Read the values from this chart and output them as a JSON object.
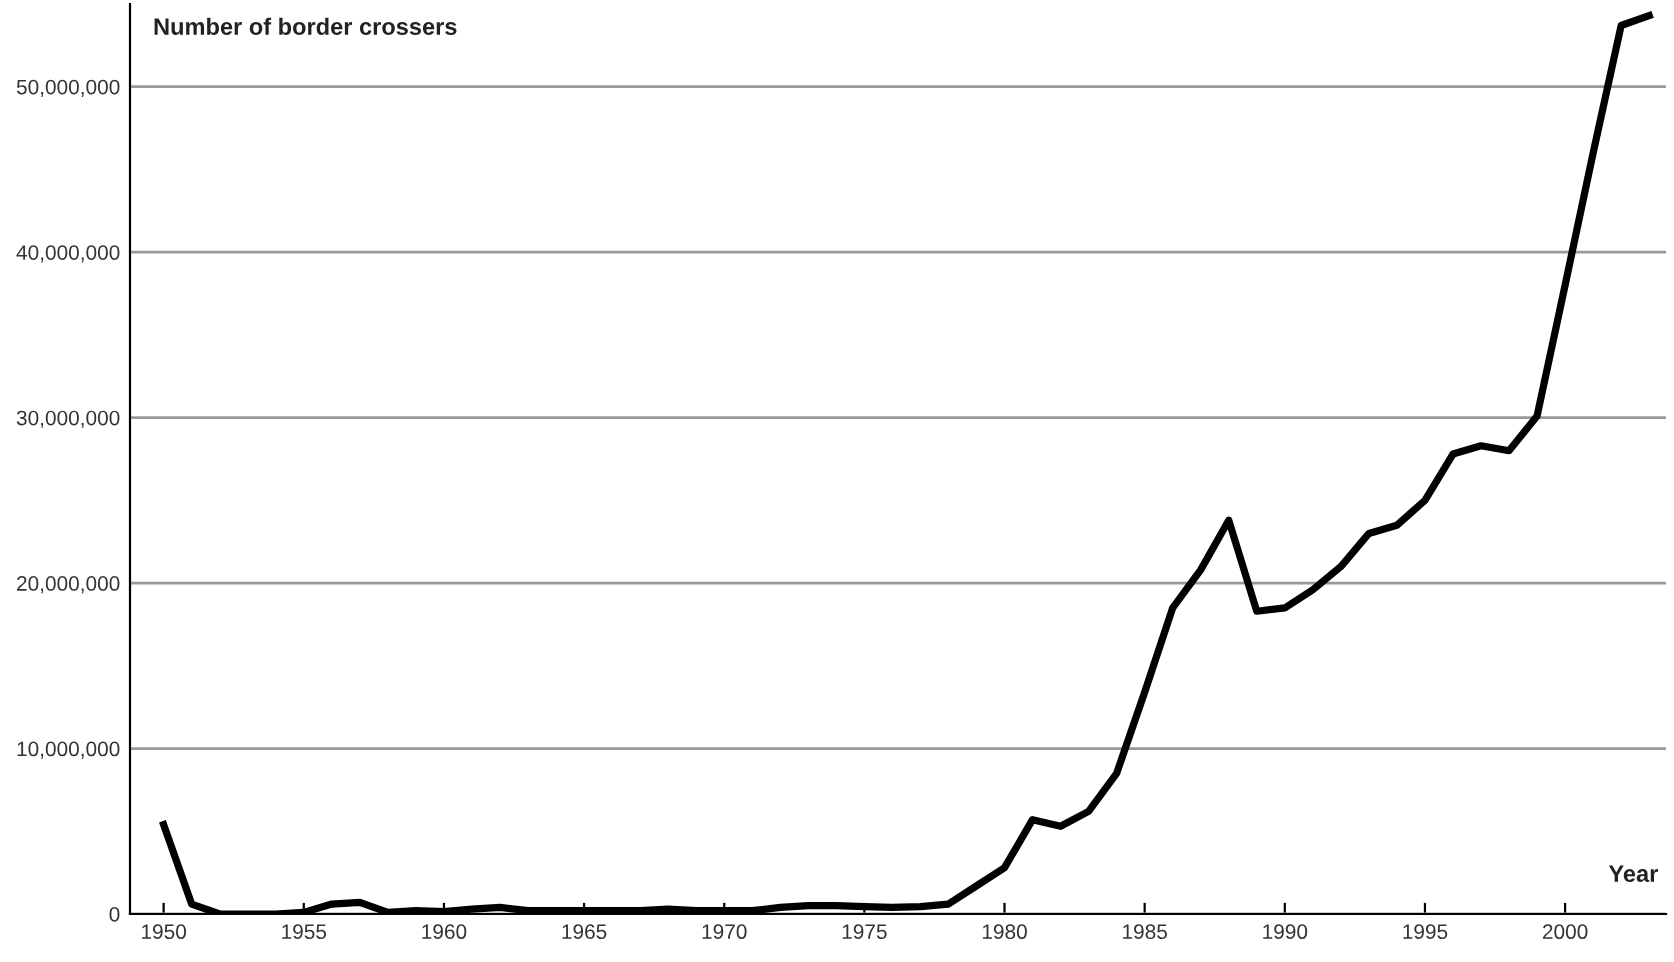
{
  "chart_data": {
    "type": "line",
    "ylabel": "Number of border crossers",
    "xlabel": "Year",
    "x": [
      1950,
      1951,
      1952,
      1953,
      1954,
      1955,
      1956,
      1957,
      1958,
      1959,
      1960,
      1961,
      1962,
      1963,
      1964,
      1965,
      1966,
      1967,
      1968,
      1969,
      1970,
      1971,
      1972,
      1973,
      1974,
      1975,
      1976,
      1977,
      1978,
      1979,
      1980,
      1981,
      1982,
      1983,
      1984,
      1985,
      1986,
      1987,
      1988,
      1989,
      1990,
      1991,
      1992,
      1993,
      1994,
      1995,
      1996,
      1997,
      1998,
      1999,
      2000,
      2001,
      2002,
      2003
    ],
    "series": [
      {
        "color": "#000000",
        "values": [
          5400000,
          600000,
          0,
          0,
          0,
          100000,
          600000,
          700000,
          100000,
          200000,
          150000,
          300000,
          400000,
          200000,
          200000,
          200000,
          200000,
          200000,
          300000,
          200000,
          200000,
          200000,
          400000,
          500000,
          500000,
          450000,
          400000,
          450000,
          600000,
          1700000,
          2800000,
          5700000,
          5300000,
          6200000,
          8500000,
          13400000,
          18500000,
          20800000,
          23800000,
          18300000,
          18500000,
          19600000,
          21000000,
          23000000,
          23500000,
          25000000,
          27800000,
          28300000,
          28000000,
          30100000,
          38000000,
          46000000,
          53700000,
          54300000
        ]
      }
    ],
    "xlim": [
      1948.8,
      2003.6
    ],
    "xticks": [
      1950,
      1955,
      1960,
      1965,
      1970,
      1975,
      1980,
      1985,
      1990,
      1995,
      2000
    ],
    "ylim": [
      0,
      55000000
    ],
    "yticks": [
      {
        "value": 0,
        "label": "0"
      },
      {
        "value": 10000000,
        "label": "10,000,000"
      },
      {
        "value": 20000000,
        "label": "20,000,000"
      },
      {
        "value": 30000000,
        "label": "30,000,000"
      },
      {
        "value": 40000000,
        "label": "40,000,000"
      },
      {
        "value": 50000000,
        "label": "50,000,000"
      }
    ],
    "grid": "y",
    "marker": "none",
    "line_style": "solid",
    "legend": false
  }
}
